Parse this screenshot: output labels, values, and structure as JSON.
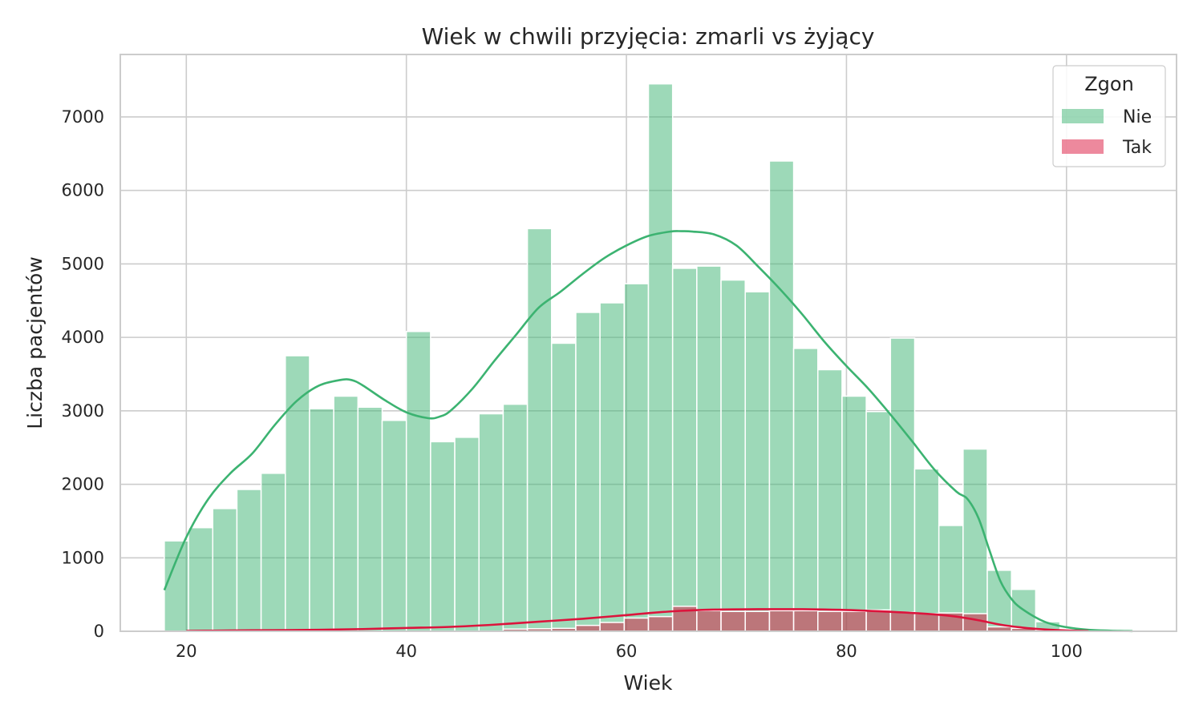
{
  "chart_data": {
    "type": "bar",
    "title": "Wiek w chwili przyjęcia: zmarli vs żyjący",
    "xlabel": "Wiek",
    "ylabel": "Liczba pacjentów",
    "xlim": [
      14,
      110
    ],
    "ylim": [
      0,
      7850
    ],
    "xticks": [
      20,
      40,
      60,
      80,
      100
    ],
    "yticks": [
      0,
      1000,
      2000,
      3000,
      4000,
      5000,
      6000,
      7000
    ],
    "grid": true,
    "legend": {
      "title": "Zgon",
      "placement": "top-right"
    },
    "bin_start": 18,
    "bin_width": 2.2,
    "series": [
      {
        "name": "Nie",
        "color": "#3cb371",
        "values": [
          1230,
          1410,
          1670,
          1930,
          2150,
          3750,
          3030,
          3200,
          3050,
          2870,
          4080,
          2580,
          2640,
          2960,
          3090,
          5480,
          3920,
          4340,
          4470,
          4730,
          7450,
          4940,
          4970,
          4780,
          4620,
          6400,
          3850,
          3560,
          3200,
          2990,
          3990,
          2210,
          1440,
          2480,
          830,
          570,
          130,
          30,
          20,
          15
        ],
        "kde": {
          "x": [
            18,
            20,
            22,
            24,
            26,
            28,
            30,
            32,
            34,
            35,
            36,
            38,
            40,
            42,
            43,
            44,
            46,
            48,
            50,
            52,
            54,
            56,
            58,
            60,
            62,
            64,
            65,
            66,
            68,
            70,
            72,
            74,
            76,
            78,
            80,
            82,
            84,
            86,
            88,
            90,
            91,
            92,
            93,
            94,
            95,
            96,
            98,
            100,
            102,
            104,
            106
          ],
          "y": [
            560,
            1280,
            1800,
            2150,
            2420,
            2800,
            3130,
            3340,
            3420,
            3420,
            3350,
            3150,
            2980,
            2900,
            2920,
            3000,
            3300,
            3680,
            4040,
            4400,
            4620,
            4860,
            5080,
            5250,
            5380,
            5440,
            5445,
            5440,
            5400,
            5250,
            4960,
            4650,
            4310,
            3940,
            3610,
            3300,
            2950,
            2580,
            2200,
            1900,
            1800,
            1540,
            1100,
            680,
            440,
            300,
            130,
            55,
            20,
            8,
            2
          ]
        }
      },
      {
        "name": "Tak",
        "color": "#dc143c",
        "values": [
          0,
          0,
          0,
          0,
          0,
          0,
          0,
          0,
          0,
          0,
          0,
          0,
          0,
          0,
          30,
          35,
          40,
          80,
          120,
          180,
          200,
          340,
          280,
          270,
          270,
          280,
          280,
          270,
          270,
          290,
          260,
          240,
          250,
          240,
          60,
          40,
          20,
          5,
          0,
          0
        ],
        "kde": {
          "x": [
            20,
            24,
            28,
            32,
            36,
            40,
            44,
            48,
            52,
            56,
            60,
            64,
            68,
            72,
            76,
            80,
            84,
            88,
            90,
            92,
            94,
            96,
            98,
            100,
            102
          ],
          "y": [
            5,
            10,
            15,
            20,
            30,
            45,
            60,
            90,
            130,
            170,
            220,
            270,
            295,
            300,
            300,
            290,
            265,
            230,
            200,
            150,
            90,
            50,
            25,
            10,
            4
          ]
        }
      }
    ]
  }
}
